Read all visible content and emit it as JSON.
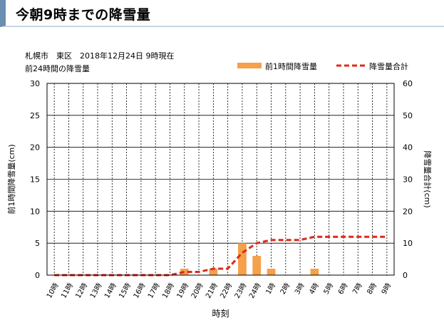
{
  "page": {
    "heading": "今朝9時までの降雪量"
  },
  "chart_data": {
    "type": "bar+line",
    "subtitle_line1": "札幌市　東区　2018年12月24日 9時現在",
    "subtitle_line2": "前24時間の降雪量",
    "xlabel": "時刻",
    "ylabel_left": "前1時間降雪量(cm)",
    "ylabel_right": "降雪量合計(cm)",
    "categories": [
      "10時",
      "11時",
      "12時",
      "13時",
      "14時",
      "15時",
      "16時",
      "17時",
      "18時",
      "19時",
      "20時",
      "21時",
      "22時",
      "23時",
      "24時",
      "1時",
      "2時",
      "3時",
      "4時",
      "5時",
      "6時",
      "7時",
      "8時",
      "9時"
    ],
    "ylim_left": [
      0,
      30
    ],
    "yticks_left": [
      0,
      5,
      10,
      15,
      20,
      25,
      30
    ],
    "ylim_right": [
      0,
      60
    ],
    "yticks_right": [
      0,
      10,
      20,
      30,
      40,
      50,
      60
    ],
    "grid": true,
    "legend_position": "top-right",
    "series": [
      {
        "name": "前1時間降雪量",
        "kind": "bar",
        "axis": "left",
        "color": "#f5a04a",
        "values": [
          0,
          0,
          0,
          0,
          0,
          0,
          0,
          0,
          0,
          1,
          0,
          1,
          0,
          5,
          3,
          1,
          0,
          0,
          1,
          0,
          0,
          0,
          0,
          0
        ]
      },
      {
        "name": "降雪量合計",
        "kind": "line",
        "axis": "right",
        "color": "#dd2a1a",
        "dashed": true,
        "values": [
          0,
          0,
          0,
          0,
          0,
          0,
          0,
          0,
          0,
          1,
          1,
          2,
          2,
          7,
          10,
          11,
          11,
          11,
          12,
          12,
          12,
          12,
          12,
          12
        ]
      }
    ]
  }
}
